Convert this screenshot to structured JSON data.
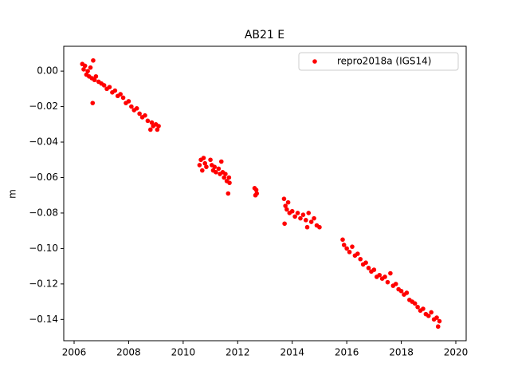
{
  "chart_data": {
    "type": "scatter",
    "title": "AB21 E",
    "ylabel": "m",
    "legend": "upper right",
    "xlim": [
      2005.62,
      2020.38
    ],
    "ylim": [
      -0.152,
      0.014
    ],
    "xticks": [
      2006,
      2008,
      2010,
      2012,
      2014,
      2016,
      2018,
      2020
    ],
    "yticks": [
      {
        "value": 0,
        "label": "0.00"
      },
      {
        "value": -0.02,
        "label": "−0.02"
      },
      {
        "value": -0.04,
        "label": "−0.04"
      },
      {
        "value": -0.06,
        "label": "−0.06"
      },
      {
        "value": -0.08,
        "label": "−0.08"
      },
      {
        "value": -0.1,
        "label": "−0.10"
      },
      {
        "value": -0.12,
        "label": "−0.12"
      },
      {
        "value": -0.14,
        "label": "−0.14"
      }
    ],
    "series": [
      {
        "name": "repro2018a (IGS14)",
        "color": "#ff0000",
        "x": [
          2006.3,
          2006.35,
          2006.4,
          2006.45,
          2006.5,
          2006.55,
          2006.6,
          2006.65,
          2006.68,
          2006.7,
          2006.75,
          2006.8,
          2006.9,
          2007.0,
          2007.1,
          2007.2,
          2007.3,
          2007.4,
          2007.5,
          2007.6,
          2007.7,
          2007.8,
          2007.9,
          2008.0,
          2008.1,
          2008.2,
          2008.3,
          2008.4,
          2008.5,
          2008.6,
          2008.7,
          2008.8,
          2008.85,
          2008.9,
          2009.0,
          2009.05,
          2009.1,
          2010.6,
          2010.65,
          2010.7,
          2010.75,
          2010.8,
          2010.85,
          2011.0,
          2011.05,
          2011.1,
          2011.15,
          2011.2,
          2011.3,
          2011.35,
          2011.4,
          2011.45,
          2011.5,
          2011.55,
          2011.6,
          2011.65,
          2011.68,
          2011.7,
          2012.62,
          2012.65,
          2012.68,
          2012.7,
          2013.7,
          2013.72,
          2013.75,
          2013.8,
          2013.85,
          2013.9,
          2014.0,
          2014.1,
          2014.2,
          2014.3,
          2014.4,
          2014.5,
          2014.55,
          2014.6,
          2014.7,
          2014.8,
          2014.9,
          2015.0,
          2015.85,
          2015.9,
          2016.0,
          2016.1,
          2016.2,
          2016.3,
          2016.4,
          2016.5,
          2016.6,
          2016.7,
          2016.8,
          2016.9,
          2017.0,
          2017.1,
          2017.2,
          2017.3,
          2017.4,
          2017.5,
          2017.6,
          2017.7,
          2017.8,
          2017.9,
          2018.0,
          2018.1,
          2018.2,
          2018.3,
          2018.4,
          2018.5,
          2018.6,
          2018.7,
          2018.8,
          2018.9,
          2019.0,
          2019.1,
          2019.2,
          2019.3,
          2019.35,
          2019.4
        ],
        "values": [
          0.004,
          0.001,
          0.003,
          -0.002,
          0.0,
          -0.003,
          0.002,
          -0.004,
          -0.018,
          0.006,
          -0.005,
          -0.003,
          -0.006,
          -0.007,
          -0.008,
          -0.01,
          -0.009,
          -0.012,
          -0.011,
          -0.014,
          -0.013,
          -0.015,
          -0.018,
          -0.017,
          -0.02,
          -0.022,
          -0.021,
          -0.024,
          -0.026,
          -0.025,
          -0.028,
          -0.033,
          -0.029,
          -0.031,
          -0.03,
          -0.033,
          -0.031,
          -0.053,
          -0.05,
          -0.056,
          -0.049,
          -0.052,
          -0.054,
          -0.05,
          -0.053,
          -0.056,
          -0.054,
          -0.057,
          -0.055,
          -0.058,
          -0.051,
          -0.057,
          -0.06,
          -0.058,
          -0.062,
          -0.069,
          -0.06,
          -0.063,
          -0.066,
          -0.07,
          -0.067,
          -0.069,
          -0.072,
          -0.086,
          -0.076,
          -0.078,
          -0.074,
          -0.08,
          -0.079,
          -0.082,
          -0.08,
          -0.083,
          -0.081,
          -0.084,
          -0.088,
          -0.08,
          -0.085,
          -0.083,
          -0.087,
          -0.088,
          -0.095,
          -0.098,
          -0.1,
          -0.102,
          -0.099,
          -0.104,
          -0.103,
          -0.106,
          -0.109,
          -0.108,
          -0.111,
          -0.113,
          -0.112,
          -0.116,
          -0.115,
          -0.117,
          -0.116,
          -0.119,
          -0.114,
          -0.121,
          -0.12,
          -0.123,
          -0.124,
          -0.126,
          -0.125,
          -0.129,
          -0.13,
          -0.131,
          -0.133,
          -0.135,
          -0.134,
          -0.137,
          -0.138,
          -0.136,
          -0.14,
          -0.139,
          -0.144,
          -0.141
        ]
      }
    ]
  }
}
